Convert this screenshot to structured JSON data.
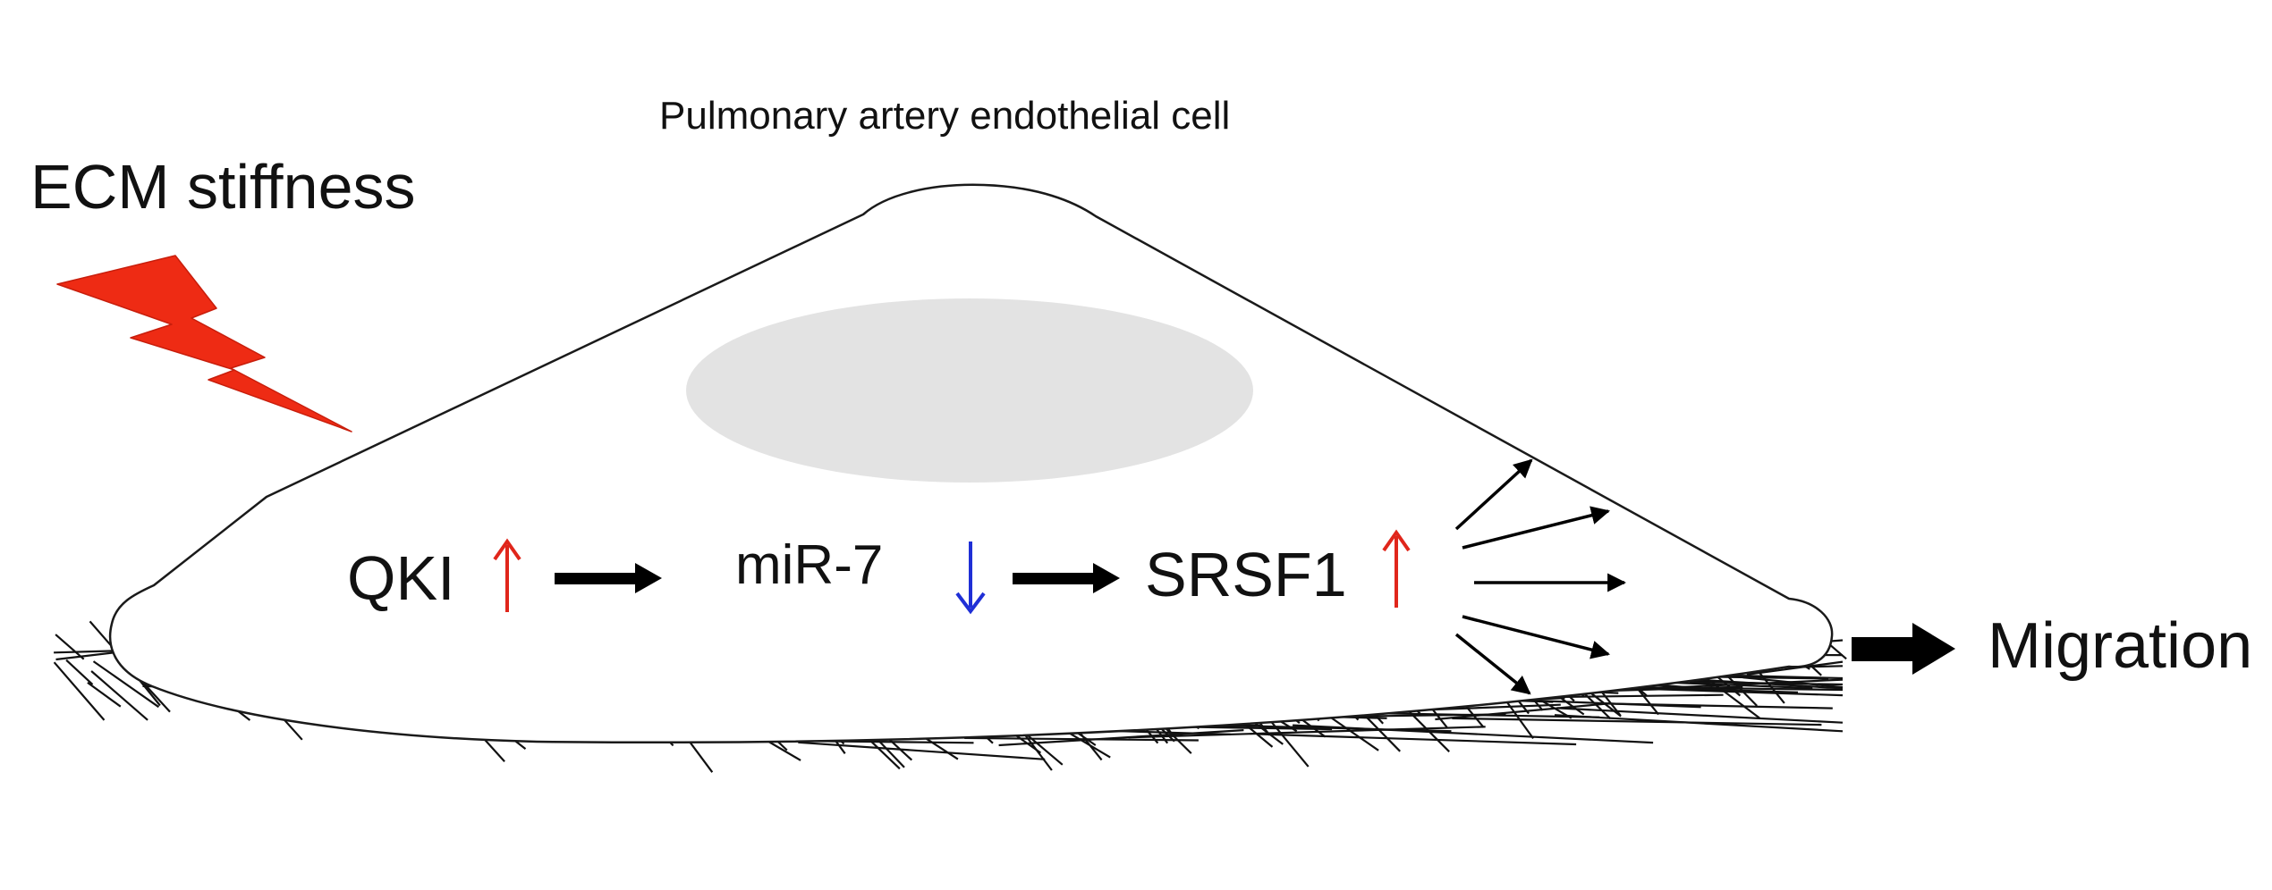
{
  "diagram": {
    "cell_label": "Pulmonary artery endothelial cell",
    "stimulus_label": "ECM stiffness",
    "outcome_label": "Migration",
    "pathway": [
      {
        "name": "QKI",
        "direction": "up",
        "arrow_color": "#e0261b"
      },
      {
        "name": "miR-7",
        "direction": "down",
        "arrow_color": "#1f2fd6"
      },
      {
        "name": "SRSF1",
        "direction": "up",
        "arrow_color": "#e0261b"
      }
    ]
  },
  "colors": {
    "lightning": "#ee2b14",
    "nucleus": "#e3e3e3",
    "outline": "#1a1a1a",
    "arrow": "#000000"
  }
}
